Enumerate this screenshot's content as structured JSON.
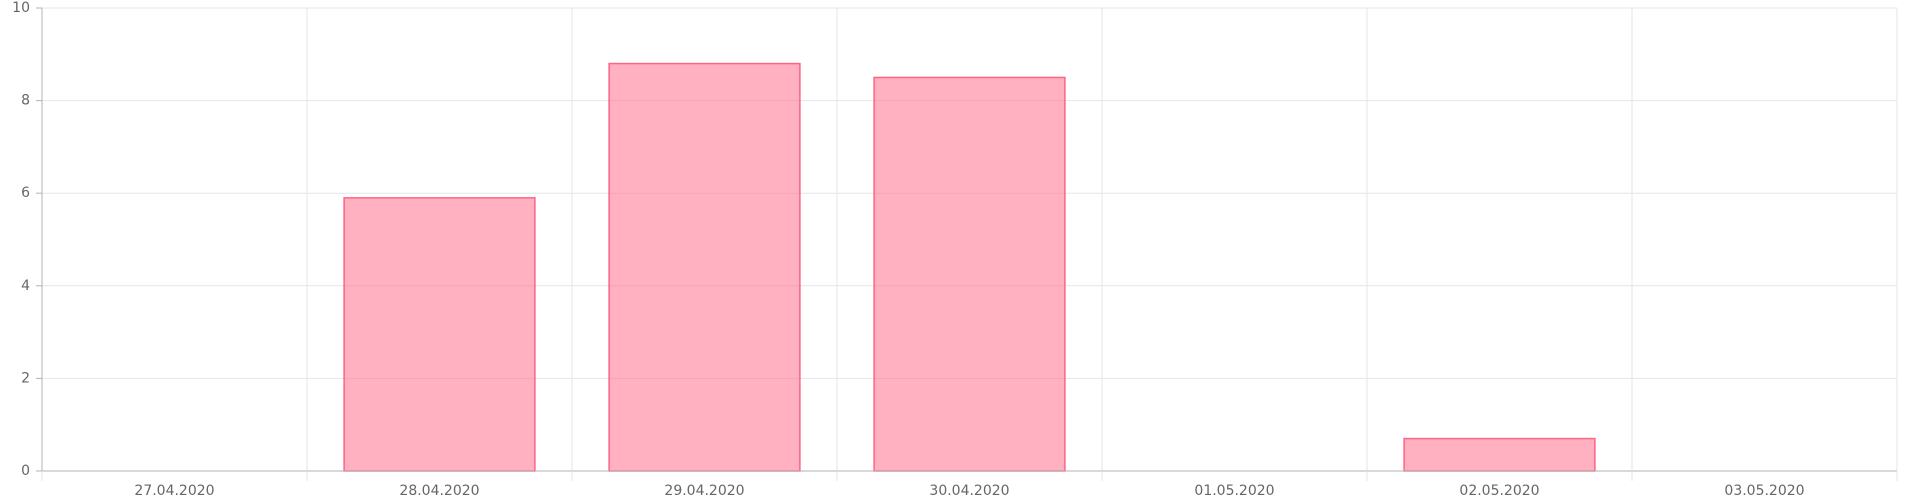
{
  "chart_data": {
    "type": "bar",
    "title": "",
    "xlabel": "",
    "ylabel": "",
    "categories": [
      "27.04.2020",
      "28.04.2020",
      "29.04.2020",
      "30.04.2020",
      "01.05.2020",
      "02.05.2020",
      "03.05.2020"
    ],
    "series": [
      {
        "values": [
          0,
          5.9,
          8.8,
          8.5,
          0,
          0.7,
          0
        ],
        "color": "#ff6384"
      }
    ],
    "ylim": [
      0,
      10
    ],
    "yticks": [
      0,
      2,
      4,
      6,
      8,
      10
    ],
    "grid": true,
    "legend": "none"
  }
}
